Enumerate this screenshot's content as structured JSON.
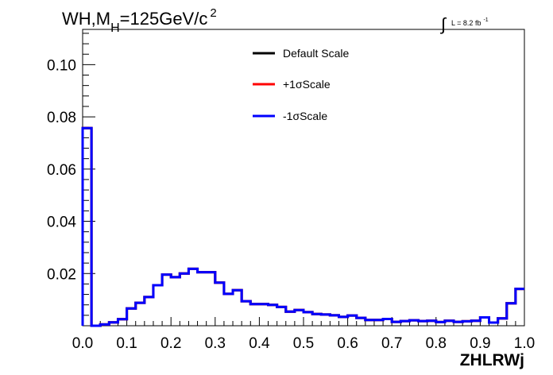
{
  "chart_data": {
    "type": "line",
    "style": "step-histogram",
    "title": {
      "main": "WH,M",
      "sub": "H",
      "rest": "=125GeV/c",
      "sup": "2"
    },
    "luminosity": {
      "symbol": "∫",
      "text": "L = 8.2 fb",
      "sup": "-1"
    },
    "xlabel": "ZHLRWj",
    "ylabel": "",
    "xlim": [
      0.0,
      1.0
    ],
    "ylim": [
      0.0,
      0.1135
    ],
    "grid": false,
    "legend_position": "top-center",
    "x_ticks": [
      {
        "value": 0.0,
        "label": "0.0"
      },
      {
        "value": 0.1,
        "label": "0.1"
      },
      {
        "value": 0.2,
        "label": "0.2"
      },
      {
        "value": 0.3,
        "label": "0.3"
      },
      {
        "value": 0.4,
        "label": "0.4"
      },
      {
        "value": 0.5,
        "label": "0.5"
      },
      {
        "value": 0.6,
        "label": "0.6"
      },
      {
        "value": 0.7,
        "label": "0.7"
      },
      {
        "value": 0.8,
        "label": "0.8"
      },
      {
        "value": 0.9,
        "label": "0.9"
      },
      {
        "value": 1.0,
        "label": "1.0"
      }
    ],
    "y_ticks": [
      {
        "value": 0.02,
        "label": "0.02"
      },
      {
        "value": 0.04,
        "label": "0.04"
      },
      {
        "value": 0.06,
        "label": "0.06"
      },
      {
        "value": 0.08,
        "label": "0.08"
      },
      {
        "value": 0.1,
        "label": "0.10"
      }
    ],
    "bin_edges": [
      0.0,
      0.02,
      0.04,
      0.06,
      0.08,
      0.1,
      0.12,
      0.14,
      0.16,
      0.18,
      0.2,
      0.22,
      0.24,
      0.26,
      0.28,
      0.3,
      0.32,
      0.34,
      0.36,
      0.38,
      0.4,
      0.42,
      0.44,
      0.46,
      0.48,
      0.5,
      0.52,
      0.54,
      0.56,
      0.58,
      0.6,
      0.62,
      0.64,
      0.66,
      0.68,
      0.7,
      0.72,
      0.74,
      0.76,
      0.78,
      0.8,
      0.82,
      0.84,
      0.86,
      0.88,
      0.9,
      0.92,
      0.94,
      0.96,
      0.98,
      1.0
    ],
    "series": [
      {
        "name": "Default Scale",
        "color": "#000000",
        "values": [
          0.0757,
          0.0,
          0.0005,
          0.0013,
          0.0025,
          0.0066,
          0.0088,
          0.011,
          0.0155,
          0.0196,
          0.0186,
          0.02,
          0.0218,
          0.0205,
          0.0205,
          0.0165,
          0.0122,
          0.0136,
          0.0094,
          0.0083,
          0.0083,
          0.008,
          0.0072,
          0.0054,
          0.006,
          0.0052,
          0.0045,
          0.0043,
          0.004,
          0.0034,
          0.0039,
          0.003,
          0.0022,
          0.0022,
          0.0026,
          0.0015,
          0.0018,
          0.0021,
          0.0018,
          0.0019,
          0.0014,
          0.0019,
          0.0015,
          0.0017,
          0.0019,
          0.0032,
          0.0012,
          0.0028,
          0.0086,
          0.0141
        ]
      },
      {
        "name": "+1σScale",
        "color": "#ff0000",
        "values": [
          0.0757,
          0.0,
          0.0005,
          0.0013,
          0.0025,
          0.0066,
          0.0088,
          0.011,
          0.0155,
          0.0196,
          0.0186,
          0.02,
          0.0218,
          0.0205,
          0.0205,
          0.0165,
          0.0122,
          0.0136,
          0.0094,
          0.0083,
          0.0083,
          0.008,
          0.0072,
          0.0054,
          0.006,
          0.0052,
          0.0045,
          0.0043,
          0.004,
          0.0034,
          0.0039,
          0.003,
          0.0022,
          0.0022,
          0.0026,
          0.0015,
          0.0018,
          0.0021,
          0.0018,
          0.0019,
          0.0014,
          0.0019,
          0.0015,
          0.0017,
          0.0019,
          0.0032,
          0.0012,
          0.0028,
          0.0086,
          0.0141
        ]
      },
      {
        "name": "-1σScale",
        "color": "#0000ff",
        "values": [
          0.0757,
          0.0,
          0.0005,
          0.0013,
          0.0025,
          0.0066,
          0.0088,
          0.011,
          0.0155,
          0.0196,
          0.0186,
          0.02,
          0.0218,
          0.0205,
          0.0205,
          0.0165,
          0.0122,
          0.0136,
          0.0094,
          0.0083,
          0.0083,
          0.008,
          0.0072,
          0.0054,
          0.006,
          0.0052,
          0.0045,
          0.0043,
          0.004,
          0.0034,
          0.0039,
          0.003,
          0.0022,
          0.0022,
          0.0026,
          0.0015,
          0.0018,
          0.0021,
          0.0018,
          0.0019,
          0.0014,
          0.0019,
          0.0015,
          0.0017,
          0.0019,
          0.0032,
          0.0012,
          0.0028,
          0.0086,
          0.0141
        ]
      }
    ]
  }
}
